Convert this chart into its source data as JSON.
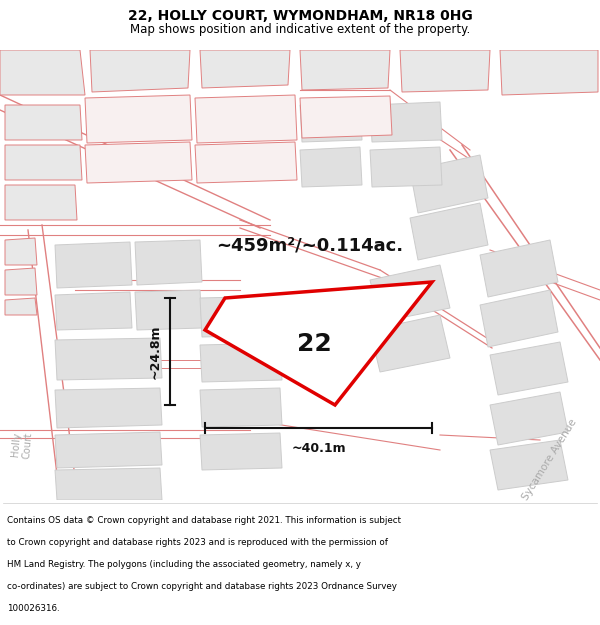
{
  "title": "22, HOLLY COURT, WYMONDHAM, NR18 0HG",
  "subtitle": "Map shows position and indicative extent of the property.",
  "area_label": "~459m²/~0.114ac.",
  "plot_number": "22",
  "dim_width": "~40.1m",
  "dim_height": "~24.8m",
  "footer_lines": [
    "Contains OS data © Crown copyright and database right 2021. This information is subject",
    "to Crown copyright and database rights 2023 and is reproduced with the permission of",
    "HM Land Registry. The polygons (including the associated geometry, namely x, y",
    "co-ordinates) are subject to Crown copyright and database rights 2023 Ordnance Survey",
    "100026316."
  ],
  "map_bg": "#f7f7f7",
  "bld_fill": "#e8e8e8",
  "bld_edge": "#e08080",
  "road_col": "#e08080",
  "plot_edge": "#e00000",
  "plot_fill": "#ffffff",
  "dim_col": "#111111",
  "label_col": "#111111",
  "street_col": "#aaaaaa"
}
